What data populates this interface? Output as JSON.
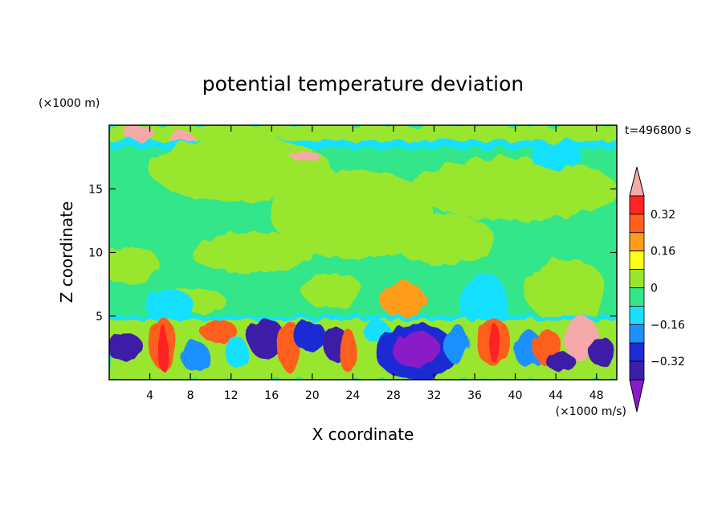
{
  "chart_data": {
    "type": "heatmap",
    "title": "potential temperature deviation",
    "xlabel": "X coordinate",
    "ylabel": "Z coordinate",
    "x_unit": "(×1000 m/s)",
    "y_unit": "(×1000 m)",
    "time_label": "t=496800 s",
    "xlim": [
      0,
      50
    ],
    "ylim": [
      0,
      20
    ],
    "x_ticks": [
      4,
      8,
      12,
      16,
      20,
      24,
      28,
      32,
      36,
      40,
      44,
      48
    ],
    "y_ticks": [
      5,
      10,
      15
    ],
    "colorbar": {
      "levels": [
        -0.4,
        -0.32,
        -0.24,
        -0.16,
        -0.08,
        0,
        0.08,
        0.16,
        0.24,
        0.32,
        0.4
      ],
      "colors": [
        "#8a1ac7",
        "#3c1fa8",
        "#1f2bd4",
        "#1e90ff",
        "#19e0ff",
        "#33e68a",
        "#99e62e",
        "#ffff1a",
        "#ff9d1a",
        "#ff5f1a",
        "#ff2424",
        "#f6a9a9"
      ],
      "tick_labels": [
        "0.32",
        "0.16",
        "0",
        "−0.16",
        "−0.32"
      ],
      "tick_values": [
        0.32,
        0.16,
        0,
        -0.16,
        -0.32
      ],
      "extend": "both"
    },
    "description_regions": [
      {
        "x": [
          0,
          50
        ],
        "z": [
          5,
          19
        ],
        "value": 0.0,
        "note": "upper layer mostly light green/green"
      },
      {
        "x": [
          0,
          50
        ],
        "z": [
          0,
          5
        ],
        "value": "mixed",
        "note": "boundary layer eddies with strong positive/negative anomalies"
      }
    ]
  }
}
